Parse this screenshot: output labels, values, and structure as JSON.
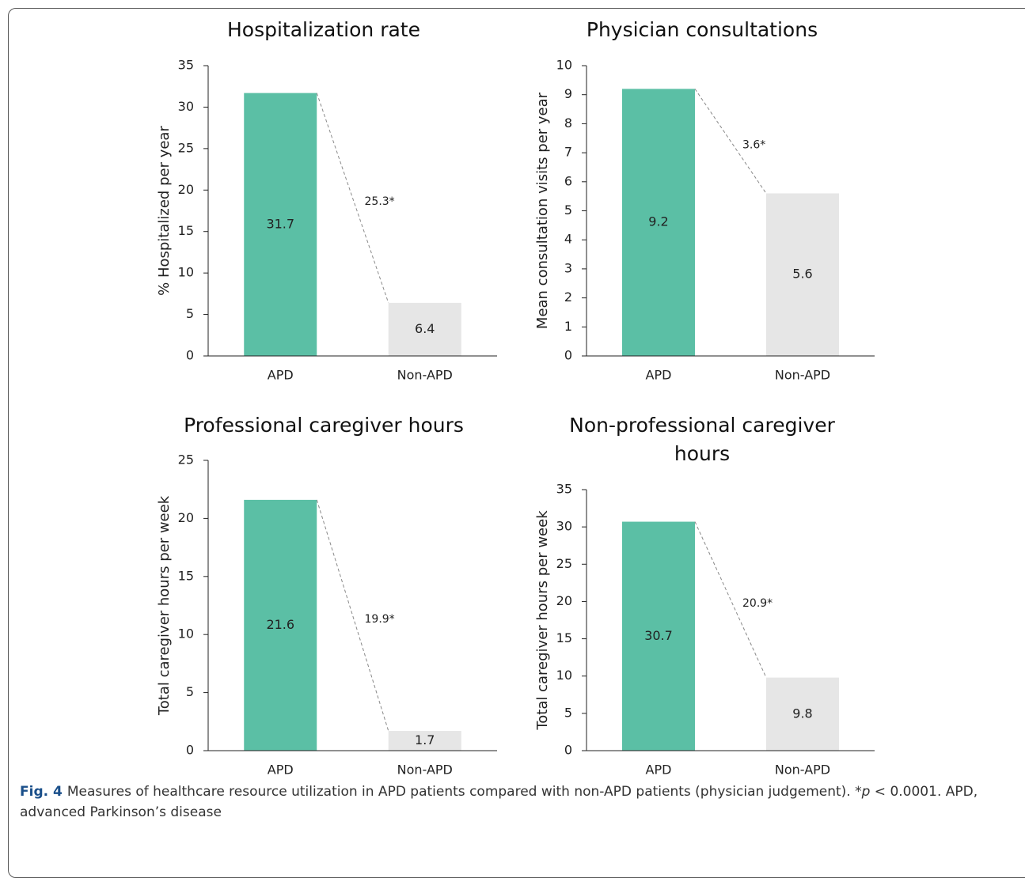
{
  "chart_data": [
    {
      "type": "bar",
      "title": "Hospitalization rate",
      "ylabel": "% Hospitalized per year",
      "categories": [
        "APD",
        "Non-APD"
      ],
      "values": [
        31.7,
        6.4
      ],
      "colors": [
        "#5bbfa5",
        "#e6e6e6"
      ],
      "annotation": "25.3*",
      "ylim": [
        0,
        35
      ],
      "yticks": [
        0,
        5,
        10,
        15,
        20,
        25,
        30,
        35
      ]
    },
    {
      "type": "bar",
      "title": "Physician consultations",
      "ylabel": "Mean consultation visits per year",
      "categories": [
        "APD",
        "Non-APD"
      ],
      "values": [
        9.2,
        5.6
      ],
      "colors": [
        "#5bbfa5",
        "#e6e6e6"
      ],
      "annotation": "3.6*",
      "ylim": [
        0,
        10
      ],
      "yticks": [
        0,
        1,
        2,
        3,
        4,
        5,
        6,
        7,
        8,
        9,
        10
      ]
    },
    {
      "type": "bar",
      "title": "Professional caregiver hours",
      "ylabel": "Total caregiver hours per week",
      "categories": [
        "APD",
        "Non-APD"
      ],
      "values": [
        21.6,
        1.7
      ],
      "colors": [
        "#5bbfa5",
        "#e6e6e6"
      ],
      "annotation": "19.9*",
      "ylim": [
        0,
        25
      ],
      "yticks": [
        0,
        5,
        10,
        15,
        20,
        25
      ]
    },
    {
      "type": "bar",
      "title": "Non-professional caregiver hours",
      "ylabel": "Total caregiver hours per week",
      "categories": [
        "APD",
        "Non-APD"
      ],
      "values": [
        30.7,
        9.8
      ],
      "colors": [
        "#5bbfa5",
        "#e6e6e6"
      ],
      "annotation": "20.9*",
      "ylim": [
        0,
        35
      ],
      "yticks": [
        0,
        5,
        10,
        15,
        20,
        25,
        30,
        35
      ]
    }
  ],
  "caption": {
    "label": "Fig. 4",
    "parts": [
      "Measures of healthcare resource utilization in APD patients compared with non-APD patients (physician judgement). *",
      "p",
      " < 0.0001. APD, advanced Parkinson’s disease"
    ]
  }
}
